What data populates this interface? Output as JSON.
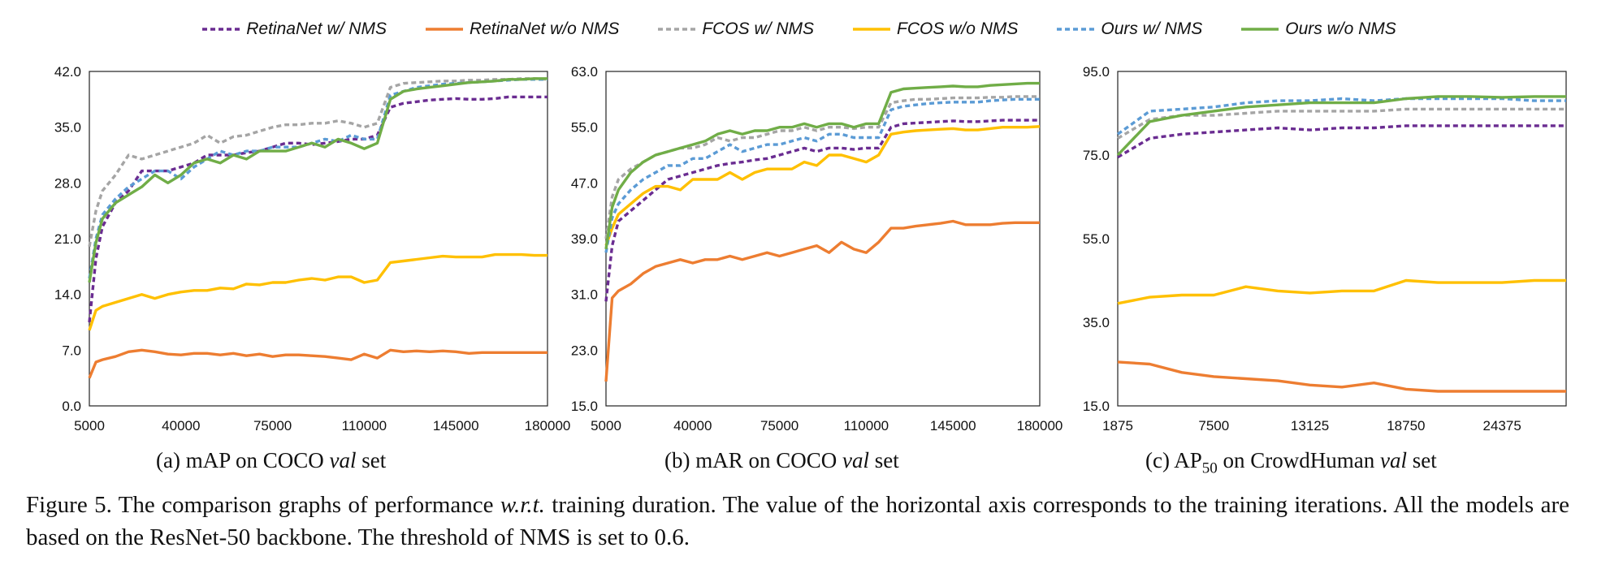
{
  "legend": [
    {
      "name": "RetinaNet w/ NMS",
      "color": "#6A2C91",
      "dash": "6,4"
    },
    {
      "name": "RetinaNet w/o NMS",
      "color": "#ED7D31",
      "dash": ""
    },
    {
      "name": "FCOS w/ NMS",
      "color": "#A5A5A5",
      "dash": "6,4"
    },
    {
      "name": "FCOS w/o NMS",
      "color": "#FFC000",
      "dash": ""
    },
    {
      "name": "Ours w/ NMS",
      "color": "#5B9BD5",
      "dash": "6,4"
    },
    {
      "name": "Ours w/o NMS",
      "color": "#70AD47",
      "dash": ""
    }
  ],
  "captions": {
    "a": {
      "prefix": "(a)  mAP on COCO ",
      "em": "val",
      "suffix": " set"
    },
    "b": {
      "prefix": "(b)  mAR on COCO ",
      "em": "val",
      "suffix": " set"
    },
    "c": {
      "prefix": "(c)  AP",
      "sub": "50",
      "mid": " on CrowdHuman ",
      "em": "val",
      "suffix": " set"
    }
  },
  "figure_caption": {
    "label": "Figure 5.",
    "text1": "  The comparison graphs of performance ",
    "em": "w.r.t.",
    "text2": "  training duration.  The value of the horizontal axis corresponds to the training iterations. All the models are based on the ResNet-50 backbone. The threshold of NMS is set to 0.6."
  },
  "chart_data": [
    {
      "type": "line",
      "xlim": [
        5000,
        180000
      ],
      "ylim": [
        0,
        42
      ],
      "xticks": [
        "5000",
        "40000",
        "75000",
        "110000",
        "145000",
        "180000"
      ],
      "xtick_values": [
        5000,
        40000,
        75000,
        110000,
        145000,
        180000
      ],
      "yticks": [
        "0.0",
        "7.0",
        "14.0",
        "21.0",
        "28.0",
        "35.0",
        "42.0"
      ],
      "ytick_values": [
        0,
        7,
        14,
        21,
        28,
        35,
        42
      ],
      "x": [
        5000,
        7500,
        10000,
        15000,
        20000,
        25000,
        30000,
        35000,
        40000,
        45000,
        50000,
        55000,
        60000,
        65000,
        70000,
        75000,
        80000,
        85000,
        90000,
        95000,
        100000,
        105000,
        110000,
        115000,
        120000,
        125000,
        130000,
        135000,
        140000,
        145000,
        150000,
        155000,
        160000,
        165000,
        170000,
        175000,
        180000
      ],
      "series": [
        {
          "name": "RetinaNet w/ NMS",
          "values": [
            10.5,
            18.5,
            22.5,
            25.5,
            27.0,
            29.5,
            29.5,
            29.5,
            30.0,
            30.5,
            31.5,
            31.5,
            31.5,
            31.8,
            32.0,
            32.5,
            33.0,
            33.0,
            32.8,
            33.0,
            33.2,
            33.5,
            33.5,
            34.0,
            37.5,
            38.0,
            38.2,
            38.4,
            38.5,
            38.6,
            38.5,
            38.5,
            38.6,
            38.8,
            38.8,
            38.8,
            38.8
          ]
        },
        {
          "name": "RetinaNet w/o NMS",
          "values": [
            3.5,
            5.5,
            5.8,
            6.2,
            6.8,
            7.0,
            6.8,
            6.5,
            6.4,
            6.6,
            6.6,
            6.4,
            6.6,
            6.3,
            6.5,
            6.2,
            6.4,
            6.4,
            6.3,
            6.2,
            6.0,
            5.8,
            6.5,
            6.0,
            7.0,
            6.8,
            6.9,
            6.8,
            6.9,
            6.8,
            6.6,
            6.7,
            6.7,
            6.7,
            6.7,
            6.7,
            6.7
          ]
        },
        {
          "name": "FCOS w/ NMS",
          "values": [
            20.0,
            24.5,
            27.0,
            29.0,
            31.5,
            31.0,
            31.5,
            32.0,
            32.5,
            33.0,
            34.0,
            33.0,
            33.8,
            34.0,
            34.5,
            35.0,
            35.3,
            35.3,
            35.5,
            35.5,
            35.8,
            35.5,
            35.0,
            35.5,
            40.0,
            40.5,
            40.6,
            40.7,
            40.8,
            40.8,
            40.9,
            40.9,
            41.0,
            41.0,
            41.1,
            41.1,
            41.0
          ]
        },
        {
          "name": "FCOS w/o NMS",
          "values": [
            9.5,
            12.0,
            12.5,
            13.0,
            13.5,
            14.0,
            13.5,
            14.0,
            14.3,
            14.5,
            14.5,
            14.8,
            14.7,
            15.3,
            15.2,
            15.5,
            15.5,
            15.8,
            16.0,
            15.8,
            16.2,
            16.2,
            15.5,
            15.8,
            18.0,
            18.2,
            18.4,
            18.6,
            18.8,
            18.7,
            18.7,
            18.7,
            19.0,
            19.0,
            19.0,
            18.9,
            18.9
          ]
        },
        {
          "name": "Ours w/ NMS",
          "values": [
            16.0,
            21.0,
            24.0,
            26.0,
            27.5,
            28.5,
            29.5,
            29.5,
            28.5,
            30.0,
            31.0,
            32.0,
            31.5,
            32.0,
            32.0,
            32.5,
            32.5,
            32.5,
            33.0,
            33.5,
            33.2,
            34.0,
            33.5,
            33.5,
            39.0,
            39.5,
            40.0,
            40.2,
            40.4,
            40.5,
            40.6,
            40.7,
            40.8,
            40.9,
            41.0,
            41.0,
            41.0
          ]
        },
        {
          "name": "Ours w/o NMS",
          "values": [
            15.5,
            20.5,
            23.5,
            25.5,
            26.5,
            27.5,
            29.0,
            28.0,
            29.0,
            30.5,
            31.0,
            30.5,
            31.5,
            31.0,
            32.0,
            32.0,
            32.0,
            32.5,
            33.0,
            32.5,
            33.5,
            33.0,
            32.3,
            33.0,
            38.5,
            39.5,
            39.8,
            40.0,
            40.2,
            40.4,
            40.6,
            40.7,
            40.8,
            41.0,
            41.0,
            41.1,
            41.1
          ]
        }
      ]
    },
    {
      "type": "line",
      "xlim": [
        5000,
        180000
      ],
      "ylim": [
        15,
        63
      ],
      "xticks": [
        "5000",
        "40000",
        "75000",
        "110000",
        "145000",
        "180000"
      ],
      "xtick_values": [
        5000,
        40000,
        75000,
        110000,
        145000,
        180000
      ],
      "yticks": [
        "15.0",
        "23.0",
        "31.0",
        "39.0",
        "47.0",
        "55.0",
        "63.0"
      ],
      "ytick_values": [
        15,
        23,
        31,
        39,
        47,
        55,
        63
      ],
      "x": [
        5000,
        7500,
        10000,
        15000,
        20000,
        25000,
        30000,
        35000,
        40000,
        45000,
        50000,
        55000,
        60000,
        65000,
        70000,
        75000,
        80000,
        85000,
        90000,
        95000,
        100000,
        105000,
        110000,
        115000,
        120000,
        125000,
        130000,
        135000,
        140000,
        145000,
        150000,
        155000,
        160000,
        165000,
        170000,
        175000,
        180000
      ],
      "series": [
        {
          "name": "RetinaNet w/ NMS",
          "values": [
            30.0,
            38.0,
            41.5,
            43.0,
            44.5,
            46.0,
            47.5,
            48.0,
            48.5,
            49.0,
            49.5,
            49.8,
            50.0,
            50.3,
            50.5,
            51.0,
            51.5,
            52.0,
            51.5,
            52.0,
            52.0,
            51.8,
            52.0,
            52.0,
            55.0,
            55.5,
            55.6,
            55.7,
            55.8,
            55.9,
            55.8,
            55.8,
            55.9,
            56.0,
            56.0,
            56.0,
            56.0
          ]
        },
        {
          "name": "RetinaNet w/o NMS",
          "values": [
            18.5,
            30.5,
            31.5,
            32.5,
            34.0,
            35.0,
            35.5,
            36.0,
            35.5,
            36.0,
            36.0,
            36.5,
            36.0,
            36.5,
            37.0,
            36.5,
            37.0,
            37.5,
            38.0,
            37.0,
            38.5,
            37.5,
            37.0,
            38.5,
            40.5,
            40.5,
            40.8,
            41.0,
            41.2,
            41.5,
            41.0,
            41.0,
            41.0,
            41.2,
            41.3,
            41.3,
            41.3
          ]
        },
        {
          "name": "FCOS w/ NMS",
          "values": [
            39.0,
            45.0,
            47.5,
            49.0,
            50.0,
            51.0,
            51.5,
            52.0,
            52.0,
            52.5,
            53.5,
            53.0,
            53.5,
            53.5,
            54.0,
            54.5,
            54.5,
            55.0,
            54.5,
            55.0,
            55.0,
            54.8,
            55.0,
            55.0,
            58.5,
            58.8,
            59.0,
            59.0,
            59.1,
            59.2,
            59.2,
            59.2,
            59.3,
            59.3,
            59.4,
            59.4,
            59.4
          ]
        },
        {
          "name": "FCOS w/o NMS",
          "values": [
            38.0,
            40.5,
            42.5,
            44.0,
            45.5,
            46.5,
            46.5,
            46.0,
            47.5,
            47.5,
            47.5,
            48.5,
            47.5,
            48.5,
            49.0,
            49.0,
            49.0,
            50.0,
            49.5,
            51.0,
            51.0,
            50.5,
            50.0,
            51.0,
            54.0,
            54.3,
            54.5,
            54.6,
            54.7,
            54.8,
            54.6,
            54.6,
            54.8,
            55.0,
            55.0,
            55.0,
            55.1
          ]
        },
        {
          "name": "Ours w/ NMS",
          "values": [
            37.0,
            42.0,
            44.0,
            46.0,
            47.5,
            48.5,
            49.5,
            49.5,
            50.5,
            50.5,
            51.5,
            52.5,
            51.5,
            52.0,
            52.5,
            52.5,
            53.0,
            53.5,
            53.0,
            54.0,
            54.0,
            53.5,
            53.5,
            53.5,
            57.5,
            58.0,
            58.2,
            58.4,
            58.5,
            58.6,
            58.6,
            58.6,
            58.8,
            58.9,
            59.0,
            59.0,
            59.0
          ]
        },
        {
          "name": "Ours w/o NMS",
          "values": [
            37.5,
            43.5,
            46.0,
            48.5,
            50.0,
            51.0,
            51.5,
            52.0,
            52.5,
            53.0,
            54.0,
            54.5,
            54.0,
            54.5,
            54.5,
            55.0,
            55.0,
            55.5,
            55.0,
            55.5,
            55.5,
            55.0,
            55.5,
            55.5,
            60.0,
            60.5,
            60.6,
            60.7,
            60.8,
            60.9,
            60.8,
            60.8,
            61.0,
            61.1,
            61.2,
            61.3,
            61.3
          ]
        }
      ]
    },
    {
      "type": "line",
      "xlim": [
        1875,
        28125
      ],
      "ylim": [
        15,
        95
      ],
      "xticks": [
        "1875",
        "7500",
        "13125",
        "18750",
        "24375"
      ],
      "xtick_values": [
        1875,
        7500,
        13125,
        18750,
        24375
      ],
      "yticks": [
        "15.0",
        "35.0",
        "55.0",
        "75.0",
        "95.0"
      ],
      "ytick_values": [
        15,
        35,
        55,
        75,
        95
      ],
      "x": [
        1875,
        3750,
        5625,
        7500,
        9375,
        11250,
        13125,
        15000,
        16875,
        18750,
        20625,
        22500,
        24375,
        26250,
        28125
      ],
      "series": [
        {
          "name": "RetinaNet w/ NMS",
          "values": [
            74.5,
            79.0,
            80.0,
            80.5,
            81.0,
            81.5,
            81.0,
            81.5,
            81.5,
            82.0,
            82.0,
            82.0,
            82.0,
            82.0,
            82.0
          ]
        },
        {
          "name": "RetinaNet w/o NMS",
          "values": [
            25.5,
            25.0,
            23.0,
            22.0,
            21.5,
            21.0,
            20.0,
            19.5,
            20.5,
            19.0,
            18.5,
            18.5,
            18.5,
            18.5,
            18.5
          ]
        },
        {
          "name": "FCOS w/ NMS",
          "values": [
            79.0,
            83.5,
            84.5,
            84.5,
            85.0,
            85.5,
            85.5,
            85.5,
            85.5,
            86.0,
            86.0,
            86.0,
            86.0,
            86.0,
            86.0
          ]
        },
        {
          "name": "FCOS w/o NMS",
          "values": [
            39.5,
            41.0,
            41.5,
            41.5,
            43.5,
            42.5,
            42.0,
            42.5,
            42.5,
            45.0,
            44.5,
            44.5,
            44.5,
            45.0,
            45.0
          ]
        },
        {
          "name": "Ours w/ NMS",
          "values": [
            80.0,
            85.5,
            86.0,
            86.5,
            87.5,
            88.0,
            88.0,
            88.5,
            88.0,
            88.5,
            88.5,
            88.5,
            88.5,
            88.0,
            88.0
          ]
        },
        {
          "name": "Ours w/o NMS",
          "values": [
            75.0,
            83.0,
            84.5,
            85.5,
            86.5,
            87.0,
            87.5,
            87.5,
            87.5,
            88.5,
            89.0,
            89.0,
            88.8,
            89.0,
            89.0
          ]
        }
      ]
    }
  ]
}
